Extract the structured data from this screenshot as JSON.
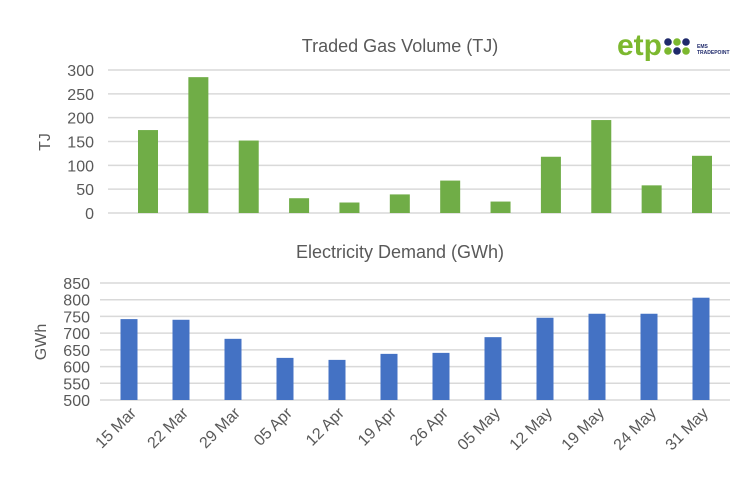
{
  "logo": {
    "text": "etp",
    "subtext_1": "EMS",
    "subtext_2": "TRADEPOINT",
    "green": "#7cb82f",
    "navy": "#1f2a6b"
  },
  "chart_data": [
    {
      "type": "bar",
      "title": "Traded Gas Volume (TJ)",
      "ylabel": "TJ",
      "xlabel": "",
      "categories": [
        "15 Mar",
        "22 Mar",
        "29 Mar",
        "05 Apr",
        "12 Apr",
        "19 Apr",
        "26 Apr",
        "05 May",
        "12 May",
        "19 May",
        "24 May",
        "31 May"
      ],
      "values": [
        174,
        285,
        152,
        31,
        22,
        39,
        68,
        24,
        118,
        195,
        58,
        120
      ],
      "ylim": [
        0,
        300
      ],
      "yticks": [
        0,
        50,
        100,
        150,
        200,
        250,
        300
      ],
      "color": "#70ad47",
      "grid": true
    },
    {
      "type": "bar",
      "title": "Electricity  Demand (GWh)",
      "ylabel": "GWh",
      "xlabel": "",
      "categories": [
        "15 Mar",
        "22 Mar",
        "29 Mar",
        "05 Apr",
        "12 Apr",
        "19 Apr",
        "26 Apr",
        "05 May",
        "12 May",
        "19 May",
        "24 May",
        "31 May"
      ],
      "values": [
        742,
        740,
        683,
        626,
        620,
        638,
        641,
        688,
        746,
        758,
        758,
        806
      ],
      "ylim": [
        500,
        850
      ],
      "yticks": [
        500,
        550,
        600,
        650,
        700,
        750,
        800,
        850
      ],
      "color": "#4472c4",
      "grid": true
    }
  ]
}
